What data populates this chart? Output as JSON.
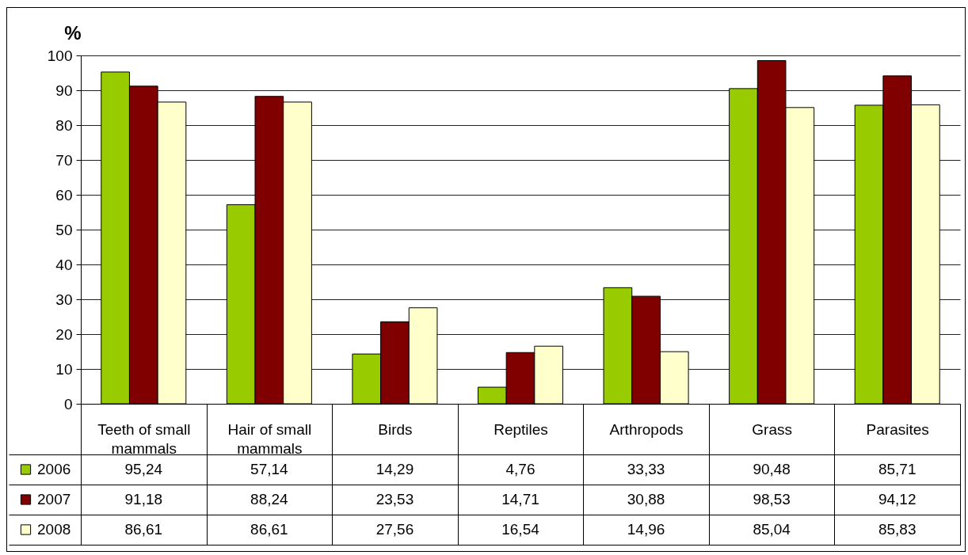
{
  "chart_data": {
    "type": "bar",
    "categories": [
      "Teeth of small mammals",
      "Hair of small mammals",
      "Birds",
      "Reptiles",
      "Arthropods",
      "Grass",
      "Parasites"
    ],
    "series": [
      {
        "name": "2006",
        "color": "#99cc00",
        "values": [
          95.24,
          57.14,
          14.29,
          4.76,
          33.33,
          90.48,
          85.71
        ],
        "value_labels": [
          "95,24",
          "57,14",
          "14,29",
          "4,76",
          "33,33",
          "90,48",
          "85,71"
        ]
      },
      {
        "name": "2007",
        "color": "#800000",
        "values": [
          91.18,
          88.24,
          23.53,
          14.71,
          30.88,
          98.53,
          94.12
        ],
        "value_labels": [
          "91,18",
          "88,24",
          "23,53",
          "14,71",
          "30,88",
          "98,53",
          "94,12"
        ]
      },
      {
        "name": "2008",
        "color": "#ffffcc",
        "values": [
          86.61,
          86.61,
          27.56,
          16.54,
          14.96,
          85.04,
          85.83
        ],
        "value_labels": [
          "86,61",
          "86,61",
          "27,56",
          "16,54",
          "14,96",
          "85,04",
          "85,83"
        ]
      }
    ],
    "ylabel": "%",
    "ylim": [
      0,
      100
    ],
    "yticks": [
      0,
      10,
      20,
      30,
      40,
      50,
      60,
      70,
      80,
      90,
      100
    ],
    "grid": "y",
    "legend": "bottom left"
  }
}
